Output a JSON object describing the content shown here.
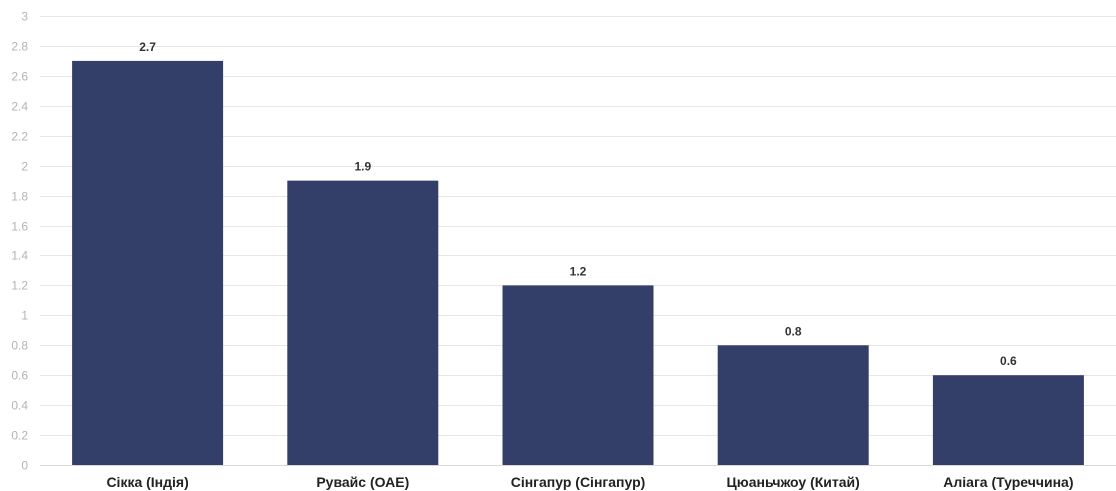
{
  "chart_data": {
    "type": "bar",
    "title": "",
    "xlabel": "",
    "ylabel": "",
    "categories": [
      "Сікка (Індія)",
      "Рувайс (ОАЕ)",
      "Сінгапур (Сінгапур)",
      "Цюаньчжоу (Китай)",
      "Аліага (Туреччина)"
    ],
    "values": [
      2.7,
      1.9,
      1.2,
      0.8,
      0.6
    ],
    "value_labels": [
      "2.7",
      "1.9",
      "1.2",
      "0.8",
      "0.6"
    ],
    "ylim": [
      0,
      3
    ],
    "yticks": [
      0,
      0.2,
      0.4,
      0.6,
      0.8,
      1,
      1.2,
      1.4,
      1.6,
      1.8,
      2,
      2.2,
      2.4,
      2.6,
      2.8,
      3
    ],
    "ytick_labels": [
      "0",
      "0.2",
      "0.4",
      "0.6",
      "0.8",
      "1",
      "1.2",
      "1.4",
      "1.6",
      "1.8",
      "2",
      "2.2",
      "2.4",
      "2.6",
      "2.8",
      "3"
    ],
    "grid": true,
    "legend": "none",
    "colors": {
      "bar": "#343f69",
      "grid": "#e6e6e6",
      "tick_text": "#b3b3b3",
      "category_text": "#222222",
      "label_text": "#333333"
    }
  }
}
